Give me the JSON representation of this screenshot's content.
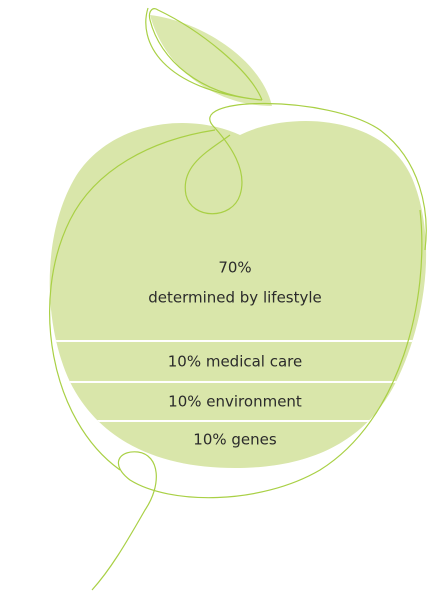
{
  "segments": [
    {
      "share": "70%",
      "label": "determined by lifestyle"
    },
    {
      "label": "10% medical care"
    },
    {
      "label": "10% environment"
    },
    {
      "label": "10% genes"
    }
  ]
}
